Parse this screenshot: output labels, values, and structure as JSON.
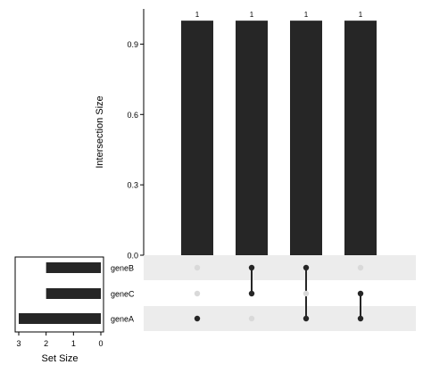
{
  "chart_data": {
    "type": "upset",
    "intersection_chart": {
      "ylabel": "Intersection Size",
      "ylim": [
        0,
        1.05
      ],
      "yticks": [
        "0.0",
        "0.3",
        "0.6",
        "0.9"
      ],
      "ytick_values": [
        0,
        0.3,
        0.6,
        0.9
      ],
      "bar_color": "#262626",
      "bars": [
        {
          "value": 1,
          "label": "1",
          "sets": [
            "geneA"
          ]
        },
        {
          "value": 1,
          "label": "1",
          "sets": [
            "geneB",
            "geneC"
          ]
        },
        {
          "value": 1,
          "label": "1",
          "sets": [
            "geneB",
            "geneA"
          ]
        },
        {
          "value": 1,
          "label": "1",
          "sets": [
            "geneC",
            "geneA"
          ]
        }
      ]
    },
    "sets": [
      {
        "name": "geneB",
        "size": 2
      },
      {
        "name": "geneC",
        "size": 2
      },
      {
        "name": "geneA",
        "size": 3
      }
    ],
    "set_size_chart": {
      "xlabel": "Set Size",
      "xlim": [
        3,
        0
      ],
      "xticks": [
        "3",
        "2",
        "1",
        "0"
      ],
      "xtick_values": [
        3,
        2,
        1,
        0
      ]
    },
    "matrix": {
      "active_dot_color": "#262626",
      "inactive_dot_color": "#d9d9d9",
      "stripe_color": "#ececec"
    }
  }
}
